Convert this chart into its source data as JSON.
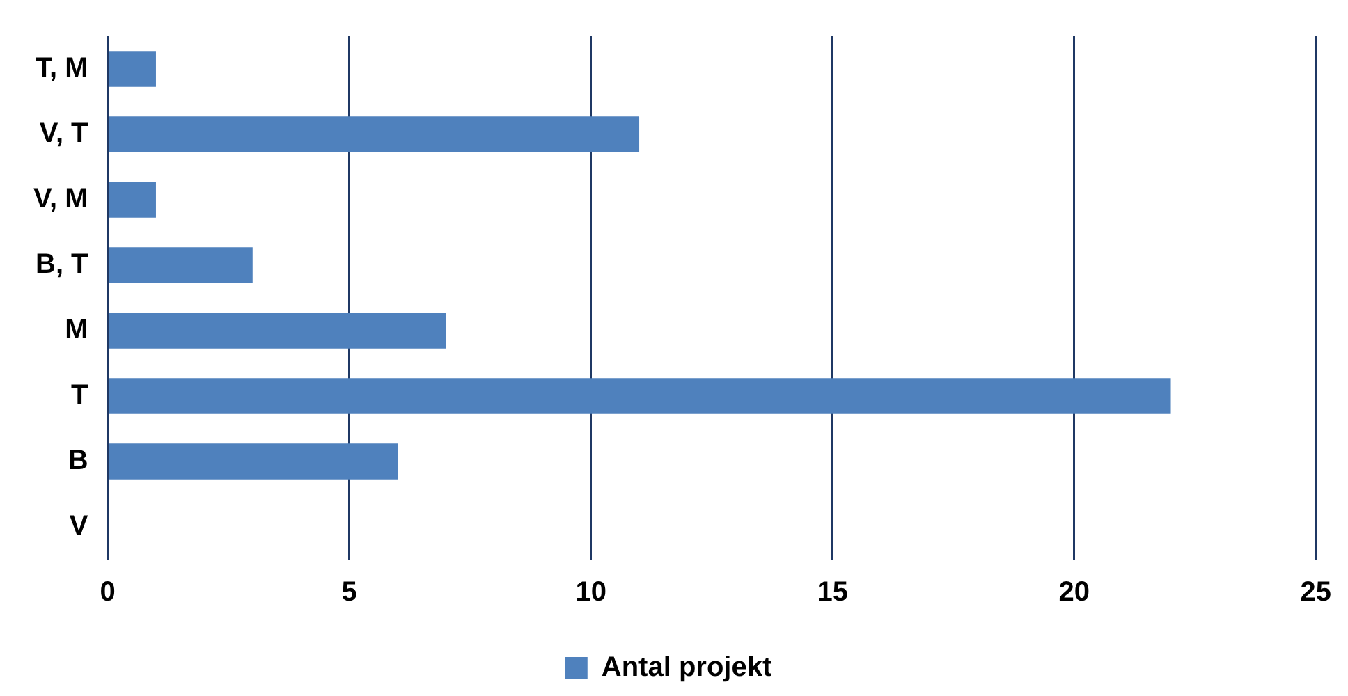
{
  "chart_data": {
    "type": "bar",
    "orientation": "horizontal",
    "categories": [
      "T, M",
      "V, T",
      "V, M",
      "B, T",
      "M",
      "T",
      "B",
      "V"
    ],
    "series": [
      {
        "name": "Antal projekt",
        "color": "#4f81bd",
        "values": [
          1,
          11,
          1,
          3,
          7,
          22,
          6,
          0
        ]
      }
    ],
    "xlim": [
      0,
      25
    ],
    "xticks": [
      0,
      5,
      10,
      15,
      20,
      25
    ],
    "grid": "x",
    "legend": "bottom"
  }
}
